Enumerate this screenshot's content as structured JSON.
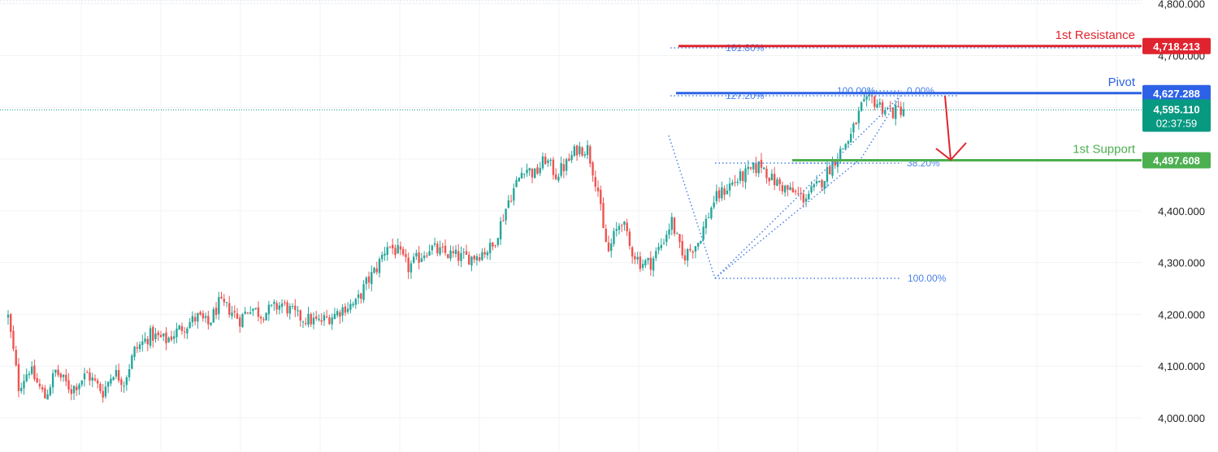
{
  "colors": {
    "up": "#26a69a",
    "down": "#ef5350",
    "resistance": "#e0242f",
    "pivot": "#2d62e6",
    "support": "#4caf50",
    "current": "#089981",
    "fib": "#4a82e8",
    "grid": "#f0f3f6",
    "arrow": "#e0242f"
  },
  "chart_data": {
    "type": "candlestick",
    "y_axis": {
      "ylim": [
        3985,
        4825
      ],
      "ticks": [
        4000,
        4100,
        4200,
        4300,
        4400,
        4700,
        4800
      ],
      "tick_labels": [
        "4,000.000",
        "4,100.000",
        "4,200.000",
        "4,300.000",
        "4,400.000",
        "4,700.000",
        "4,800.000"
      ]
    },
    "levels": [
      {
        "name": "1st Resistance",
        "value": 4718.213,
        "tag": "4,718.213"
      },
      {
        "name": "Pivot",
        "value": 4627.288,
        "tag": "4,627.288"
      },
      {
        "name": "1st Support",
        "value": 4497.608,
        "tag": "4,497.608"
      }
    ],
    "current_price": {
      "value": 4595.11,
      "tag": "4,595.110",
      "countdown": "02:37:59"
    },
    "fibonacci_labels": [
      "161.80%",
      "127.20%",
      "100.00%",
      "0.00%",
      "38.20%",
      "100.00%"
    ],
    "candle_count": 180,
    "close_path": [
      [
        0,
        4195
      ],
      [
        4,
        4060
      ],
      [
        8,
        4095
      ],
      [
        14,
        4040
      ],
      [
        18,
        4090
      ],
      [
        24,
        4055
      ],
      [
        30,
        4085
      ],
      [
        36,
        4050
      ],
      [
        40,
        4090
      ],
      [
        44,
        4070
      ],
      [
        48,
        4130
      ],
      [
        54,
        4160
      ],
      [
        60,
        4150
      ],
      [
        66,
        4175
      ],
      [
        72,
        4195
      ],
      [
        76,
        4180
      ],
      [
        80,
        4220
      ],
      [
        84,
        4210
      ],
      [
        88,
        4190
      ],
      [
        92,
        4215
      ],
      [
        96,
        4200
      ],
      [
        104,
        4220
      ],
      [
        110,
        4195
      ],
      [
        118,
        4185
      ],
      [
        124,
        4200
      ],
      [
        128,
        4215
      ],
      [
        132,
        4220
      ],
      [
        136,
        4260
      ],
      [
        140,
        4290
      ],
      [
        144,
        4335
      ],
      [
        148,
        4320
      ],
      [
        152,
        4290
      ],
      [
        156,
        4310
      ],
      [
        160,
        4330
      ],
      [
        164,
        4320
      ],
      [
        168,
        4315
      ],
      [
        172,
        4310
      ],
      [
        176,
        4310
      ],
      [
        180,
        4320
      ],
      [
        184,
        4330
      ],
      [
        190,
        4420
      ],
      [
        196,
        4485
      ],
      [
        200,
        4470
      ],
      [
        204,
        4500
      ],
      [
        208,
        4470
      ],
      [
        212,
        4490
      ],
      [
        216,
        4520
      ],
      [
        220,
        4520
      ],
      [
        224,
        4440
      ],
      [
        226,
        4360
      ],
      [
        228,
        4320
      ],
      [
        230,
        4350
      ],
      [
        233,
        4385
      ],
      [
        236,
        4330
      ],
      [
        240,
        4300
      ],
      [
        244,
        4300
      ],
      [
        248,
        4335
      ],
      [
        252,
        4380
      ],
      [
        256,
        4310
      ],
      [
        262,
        4340
      ],
      [
        268,
        4420
      ],
      [
        274,
        4450
      ],
      [
        280,
        4470
      ],
      [
        286,
        4490
      ],
      [
        290,
        4460
      ],
      [
        296,
        4440
      ],
      [
        302,
        4425
      ],
      [
        308,
        4450
      ],
      [
        314,
        4500
      ],
      [
        320,
        4545
      ],
      [
        324,
        4600
      ],
      [
        328,
        4615
      ],
      [
        332,
        4600
      ],
      [
        336,
        4590
      ],
      [
        340,
        4598
      ]
    ]
  }
}
